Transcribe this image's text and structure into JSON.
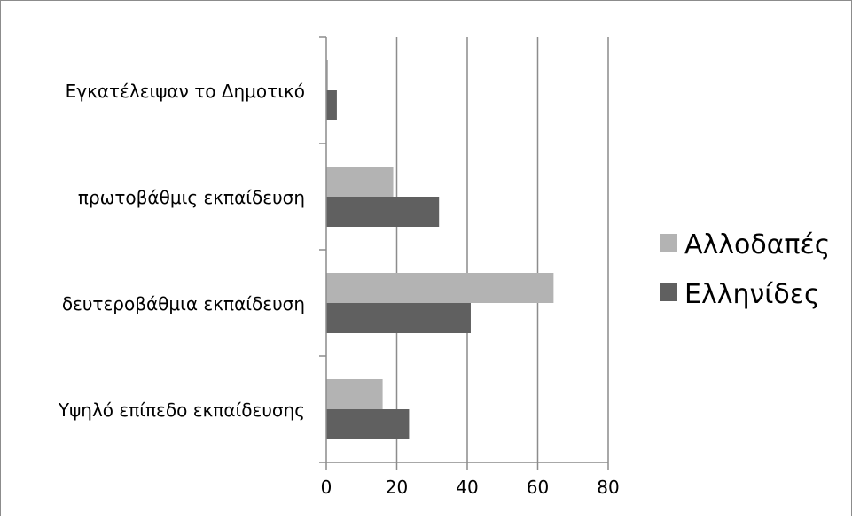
{
  "chart_data": {
    "type": "bar",
    "orientation": "horizontal",
    "categories": [
      "Εγκατέλειψαν το Δημοτικό",
      "πρωτοβάθμις εκπαίδευση",
      "δευτεροβάθμια εκπαίδευση",
      "Υψηλό επίπεδο εκπαίδευσης"
    ],
    "series": [
      {
        "name": "Αλλοδαπές",
        "color": "#b3b3b3",
        "values": [
          0.5,
          19,
          64.5,
          16
        ]
      },
      {
        "name": "Ελληνίδες",
        "color": "#606060",
        "values": [
          3,
          32,
          41,
          23.5
        ]
      }
    ],
    "xlim": [
      0,
      80
    ],
    "xticks": [
      0,
      20,
      40,
      60,
      80
    ],
    "tick_labels": [
      "0",
      "20",
      "40",
      "60",
      "80"
    ],
    "grid": "vertical",
    "legend_position": "right",
    "title": "",
    "xlabel": "",
    "ylabel": ""
  }
}
